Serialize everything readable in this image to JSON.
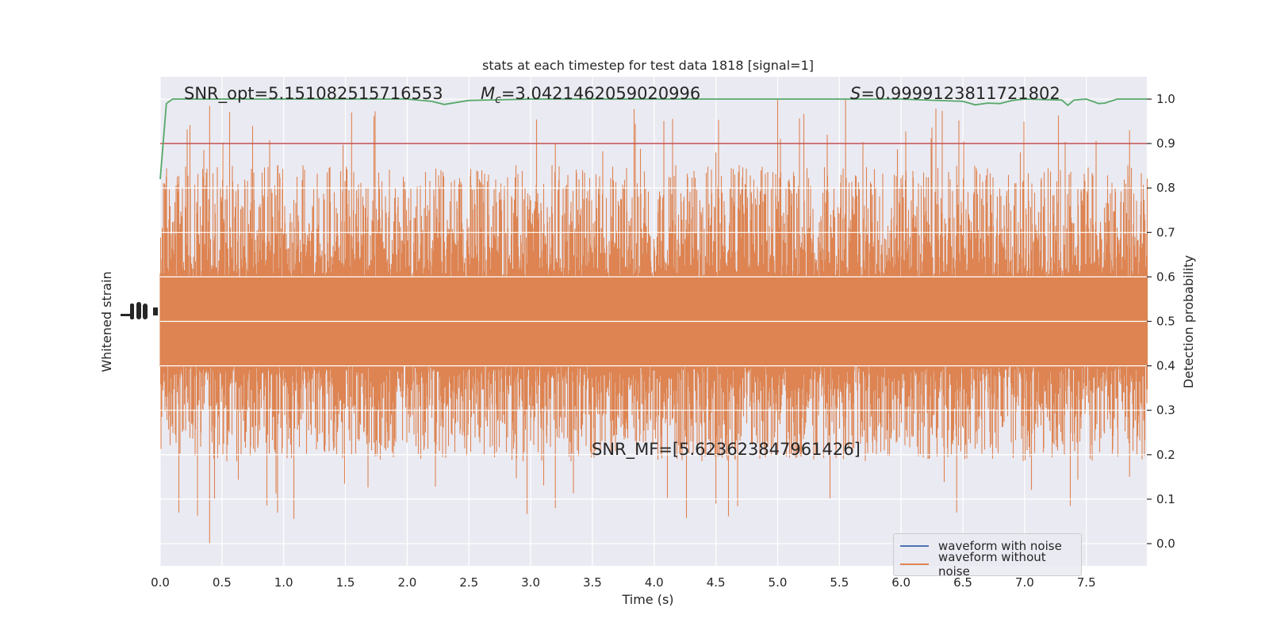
{
  "chart_data": {
    "type": "line",
    "title": "stats at each timestep for test data 1818 [signal=1]",
    "xlabel": "Time (s)",
    "ylabel_left": "Whitened strain",
    "ylabel_right": "Detection probability",
    "xlim": [
      0.0,
      7.99
    ],
    "ylim_right": [
      -0.05,
      1.05
    ],
    "grid": true,
    "x_ticks": [
      "0.0",
      "0.5",
      "1.0",
      "1.5",
      "2.0",
      "2.5",
      "3.0",
      "3.5",
      "4.0",
      "4.5",
      "5.0",
      "5.5",
      "6.0",
      "6.5",
      "7.0",
      "7.5"
    ],
    "y_right_ticks": [
      "0.0",
      "0.1",
      "0.2",
      "0.3",
      "0.4",
      "0.5",
      "0.6",
      "0.7",
      "0.8",
      "0.9",
      "1.0"
    ],
    "annotations": {
      "snr_opt": "SNR_opt=5.151082515716553",
      "mc_symbol": "M",
      "mc_sub": "c",
      "mc_value": "=3.0421462059020996",
      "s_symbol": "S",
      "s_value": "=0.9999123811721802",
      "snr_mf": "SNR_MF=[5.623623847961426]"
    },
    "threshold": 0.9,
    "legend": {
      "placement": "lower-right",
      "entries": [
        "waveform with noise",
        "waveform without noise"
      ]
    },
    "series": [
      {
        "name": "waveform with noise",
        "color": "#4c72b0",
        "description_values": "whitened strain with noise (mostly hidden beneath orange trace)"
      },
      {
        "name": "waveform without noise",
        "color": "#dd8452",
        "envelope": {
          "core_low": 0.4,
          "core_high": 0.6,
          "spike_low": 0.0,
          "spike_high": 0.99
        }
      },
      {
        "name": "detection probability",
        "color": "#55a868",
        "x": [
          0.0,
          0.05,
          0.1,
          0.2,
          0.5,
          1.0,
          1.5,
          2.0,
          2.2,
          2.3,
          2.5,
          3.0,
          4.0,
          5.0,
          6.0,
          6.5,
          6.6,
          6.7,
          6.8,
          6.9,
          7.0,
          7.3,
          7.35,
          7.4,
          7.5,
          7.6,
          7.65,
          7.75,
          7.8,
          7.99
        ],
        "y": [
          0.82,
          0.99,
          1.0,
          1.0,
          1.0,
          1.0,
          1.0,
          1.0,
          0.995,
          0.988,
          0.997,
          1.0,
          1.0,
          1.0,
          1.0,
          0.995,
          0.987,
          0.991,
          0.99,
          0.997,
          1.0,
          0.998,
          0.986,
          0.998,
          1.0,
          0.99,
          0.991,
          1.0,
          1.0,
          1.0
        ]
      }
    ],
    "colors": {
      "background": "#eaeaf2",
      "grid": "#ffffff",
      "threshold": "#c44e52",
      "text": "#262626"
    }
  }
}
